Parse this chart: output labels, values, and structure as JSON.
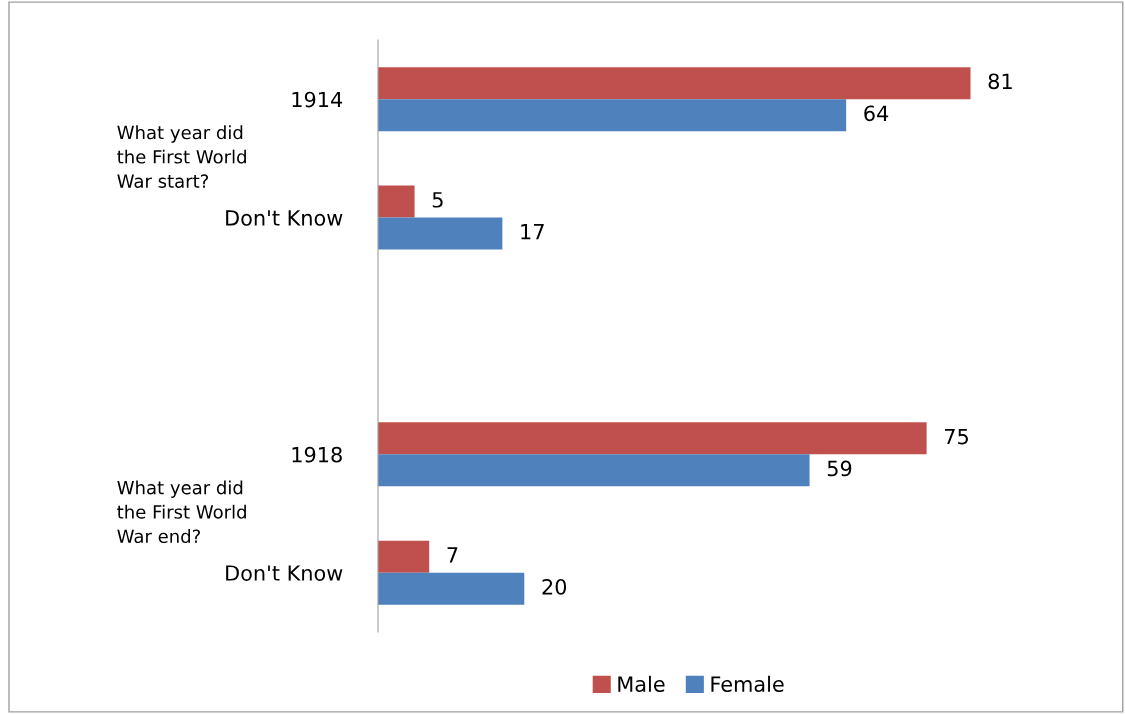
{
  "chart_data": {
    "type": "bar",
    "orientation": "horizontal",
    "categories": [
      "1914",
      "Don't Know",
      null,
      "1918",
      "Don't Know"
    ],
    "series": [
      {
        "name": "Male",
        "color": "#c0504d",
        "values": [
          81,
          5,
          null,
          75,
          7
        ]
      },
      {
        "name": "Female",
        "color": "#4f81bd",
        "values": [
          64,
          17,
          null,
          59,
          20
        ]
      }
    ],
    "tick_labels": "y",
    "data_labels": true,
    "grid": false,
    "legend": "bottom",
    "annotations": [
      "What year did\nthe First World\nWar start?",
      "What year did\nthe First World\nWar end?"
    ]
  }
}
